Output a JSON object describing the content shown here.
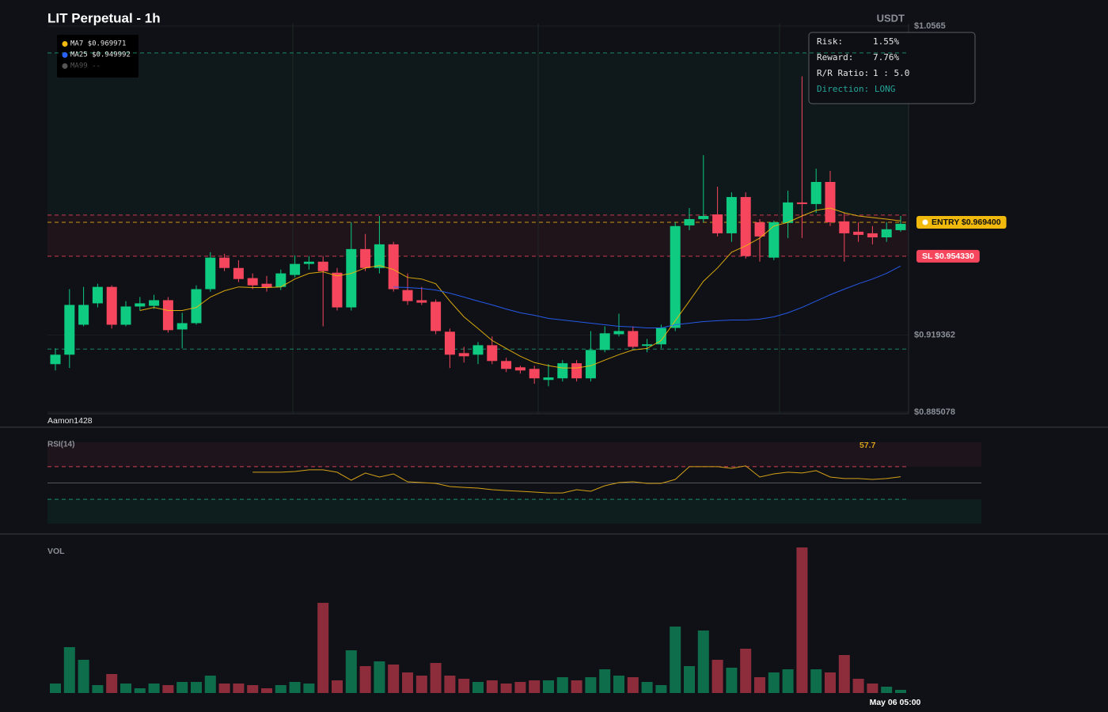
{
  "header": {
    "title": "LIT Perpetual - 1h",
    "quote": "USDT"
  },
  "watermark": "Aamon1428",
  "risk_panel": {
    "rows": [
      [
        "Risk:",
        "1.55%"
      ],
      [
        "Reward:",
        "7.76%"
      ],
      [
        "R/R Ratio:",
        "1 : 5.0"
      ]
    ],
    "direction": "Direction: LONG"
  },
  "chart_data": [
    {
      "type": "candlestick",
      "up_color": "#0ecb81",
      "down_color": "#f6465d",
      "ylim": [
        0.885078,
        1.0565
      ],
      "yticks": [
        {
          "value": 1.0565,
          "label": "$1.0565"
        },
        {
          "value": 0.919362,
          "label": "$0.919362"
        },
        {
          "value": 0.885078,
          "label": "$0.885078"
        }
      ],
      "grid": true,
      "open": [
        0.9064,
        0.9106,
        0.9239,
        0.9334,
        0.9407,
        0.9239,
        0.932,
        0.9323,
        0.9348,
        0.9218,
        0.9246,
        0.9397,
        0.9537,
        0.9491,
        0.9446,
        0.9421,
        0.9407,
        0.946,
        0.9509,
        0.9519,
        0.947,
        0.9316,
        0.9575,
        0.9491,
        0.9596,
        0.9393,
        0.9348,
        0.9341,
        0.9208,
        0.9113,
        0.9106,
        0.9148,
        0.9078,
        0.905,
        0.9043,
        0.8994,
        0.9001,
        0.9068,
        0.9001,
        0.9127,
        0.9197,
        0.9211,
        0.9145,
        0.9152,
        0.9225,
        0.968,
        0.9708,
        0.9729,
        0.9645,
        0.9806,
        0.9694,
        0.9537,
        0.9691,
        0.9782,
        0.9775,
        0.9873,
        0.9698,
        0.9652,
        0.9645,
        0.9627,
        0.9659
      ],
      "high": [
        0.9134,
        0.9397,
        0.9407,
        0.9421,
        0.9414,
        0.9344,
        0.9362,
        0.9372,
        0.9362,
        0.9292,
        0.9414,
        0.9561,
        0.9554,
        0.9526,
        0.9467,
        0.9456,
        0.9484,
        0.9547,
        0.9544,
        0.9544,
        0.9491,
        0.9694,
        0.9642,
        0.9722,
        0.9607,
        0.9467,
        0.9407,
        0.9351,
        0.9222,
        0.9141,
        0.9162,
        0.9187,
        0.9092,
        0.9057,
        0.9057,
        0.9064,
        0.9082,
        0.9082,
        0.9211,
        0.9232,
        0.9288,
        0.9232,
        0.9176,
        0.9239,
        0.9694,
        0.9757,
        0.9992,
        0.9852,
        0.9827,
        0.9827,
        0.9708,
        0.9701,
        0.9834,
        1.0342,
        0.9932,
        0.9922,
        0.9736,
        0.9694,
        0.9677,
        0.9694,
        0.9722
      ],
      "low": [
        0.9036,
        0.9047,
        0.9232,
        0.9316,
        0.9222,
        0.9232,
        0.9302,
        0.9309,
        0.9204,
        0.9134,
        0.9239,
        0.9386,
        0.9477,
        0.9428,
        0.9397,
        0.9386,
        0.9393,
        0.9449,
        0.9484,
        0.9232,
        0.9302,
        0.9302,
        0.9477,
        0.9467,
        0.9386,
        0.9327,
        0.9327,
        0.9197,
        0.9047,
        0.9071,
        0.9064,
        0.9064,
        0.9029,
        0.9022,
        0.8977,
        0.8966,
        0.8987,
        0.8987,
        0.8987,
        0.9117,
        0.9187,
        0.9134,
        0.9117,
        0.9134,
        0.9211,
        0.9659,
        0.9694,
        0.9631,
        0.9607,
        0.9533,
        0.9519,
        0.9526,
        0.9624,
        0.9624,
        0.9736,
        0.9677,
        0.9519,
        0.9607,
        0.9596,
        0.9607,
        0.9652
      ],
      "close": [
        0.9106,
        0.9327,
        0.9327,
        0.9407,
        0.9239,
        0.932,
        0.9334,
        0.9348,
        0.9215,
        0.9246,
        0.9397,
        0.9537,
        0.9491,
        0.9442,
        0.9414,
        0.9404,
        0.9467,
        0.9509,
        0.9519,
        0.9477,
        0.9316,
        0.9575,
        0.9491,
        0.9596,
        0.9397,
        0.9344,
        0.9337,
        0.9211,
        0.9106,
        0.9099,
        0.9148,
        0.9078,
        0.9043,
        0.9036,
        0.9001,
        0.9005,
        0.9068,
        0.9001,
        0.9127,
        0.9201,
        0.9211,
        0.9141,
        0.9152,
        0.9225,
        0.9677,
        0.9708,
        0.9722,
        0.9645,
        0.9806,
        0.9544,
        0.9631,
        0.9694,
        0.9782,
        0.9775,
        0.9873,
        0.9694,
        0.9645,
        0.9638,
        0.9627,
        0.9663,
        0.9687
      ],
      "moving_averages": [
        {
          "label": "MA7 $0.969971",
          "color": "#f0b90b",
          "values": [
            null,
            null,
            null,
            null,
            null,
            null,
            0.9302,
            0.9316,
            0.9302,
            0.9302,
            0.9316,
            0.9362,
            0.939,
            0.9407,
            0.9404,
            0.9404,
            0.9407,
            0.9442,
            0.9467,
            0.9474,
            0.9456,
            0.9467,
            0.9491,
            0.9502,
            0.9484,
            0.9449,
            0.9442,
            0.9421,
            0.9344,
            0.9274,
            0.9222,
            0.9169,
            0.9134,
            0.9099,
            0.9071,
            0.9057,
            0.9047,
            0.9047,
            0.9057,
            0.9082,
            0.9106,
            0.9127,
            0.9134,
            0.9169,
            0.9257,
            0.9344,
            0.9432,
            0.9491,
            0.9561,
            0.9589,
            0.9624,
            0.9677,
            0.9694,
            0.9722,
            0.9747,
            0.9757,
            0.9736,
            0.9722,
            0.9715,
            0.9708,
            0.969971
          ]
        },
        {
          "label": "MA25 $0.949992",
          "color": "#2962ff",
          "values": [
            null,
            null,
            null,
            null,
            null,
            null,
            null,
            null,
            null,
            null,
            null,
            null,
            null,
            null,
            null,
            null,
            null,
            null,
            null,
            null,
            null,
            null,
            null,
            null,
            0.9407,
            0.9404,
            0.94,
            0.9393,
            0.9379,
            0.9362,
            0.9344,
            0.9327,
            0.9309,
            0.9292,
            0.9281,
            0.9267,
            0.926,
            0.9253,
            0.9246,
            0.9239,
            0.9232,
            0.9229,
            0.9225,
            0.9225,
            0.9239,
            0.9246,
            0.9253,
            0.9257,
            0.926,
            0.926,
            0.9264,
            0.9274,
            0.9292,
            0.9316,
            0.9344,
            0.9372,
            0.9397,
            0.9421,
            0.9442,
            0.9467,
            0.949992
          ]
        },
        {
          "label": "MA99 --",
          "color": "#555555"
        }
      ],
      "levels": [
        {
          "value": 1.0446,
          "color": "#1fa37a"
        },
        {
          "value": 0.9726,
          "color": "#f6465d"
        },
        {
          "value": 0.9694,
          "color": "#f0b90b",
          "label": "ENTRY $0.969400"
        },
        {
          "value": 0.95433,
          "color": "#f6465d",
          "label": "SL $0.954330"
        },
        {
          "value": 0.9131,
          "color": "#1fa37a"
        }
      ]
    },
    {
      "type": "line",
      "title": "RSI(14)",
      "color": "#d4a017",
      "ylim": [
        0,
        100
      ],
      "levels": [
        {
          "value": 70,
          "color": "#f6465d"
        },
        {
          "value": 50,
          "color": "#5f636b"
        },
        {
          "value": 30,
          "color": "#1fa37a"
        }
      ],
      "values": [
        null,
        null,
        null,
        null,
        null,
        null,
        null,
        null,
        null,
        null,
        null,
        null,
        null,
        null,
        63.2,
        63.2,
        63.2,
        64.1,
        66.1,
        66.1,
        63.2,
        53.4,
        62.2,
        57.3,
        61.2,
        51.5,
        50.5,
        49.5,
        45.6,
        44.6,
        43.7,
        41.7,
        40.7,
        39.8,
        38.8,
        37.8,
        37.8,
        41.7,
        39.8,
        46.6,
        50.5,
        51.5,
        49.5,
        49.5,
        54.4,
        70.0,
        70.0,
        70.0,
        68.0,
        71.0,
        57.3,
        61.2,
        63.2,
        62.2,
        65.1,
        57.3,
        55.4,
        55.4,
        54.4,
        55.4,
        57.7
      ]
    },
    {
      "type": "bar",
      "title": "VOL",
      "time_label": "May 06 05:00",
      "ylim": [
        0,
        184
      ],
      "values": [
        12,
        58,
        42,
        10,
        24,
        12,
        6,
        12,
        10,
        14,
        14,
        22,
        12,
        12,
        10,
        6,
        10,
        14,
        12,
        114,
        16,
        54,
        34,
        40,
        36,
        26,
        22,
        38,
        22,
        18,
        14,
        16,
        12,
        14,
        16,
        16,
        20,
        16,
        20,
        30,
        22,
        20,
        14,
        10,
        84,
        34,
        79,
        42,
        32,
        56,
        20,
        26,
        30,
        184,
        30,
        26,
        48,
        18,
        12,
        8,
        4
      ]
    }
  ]
}
